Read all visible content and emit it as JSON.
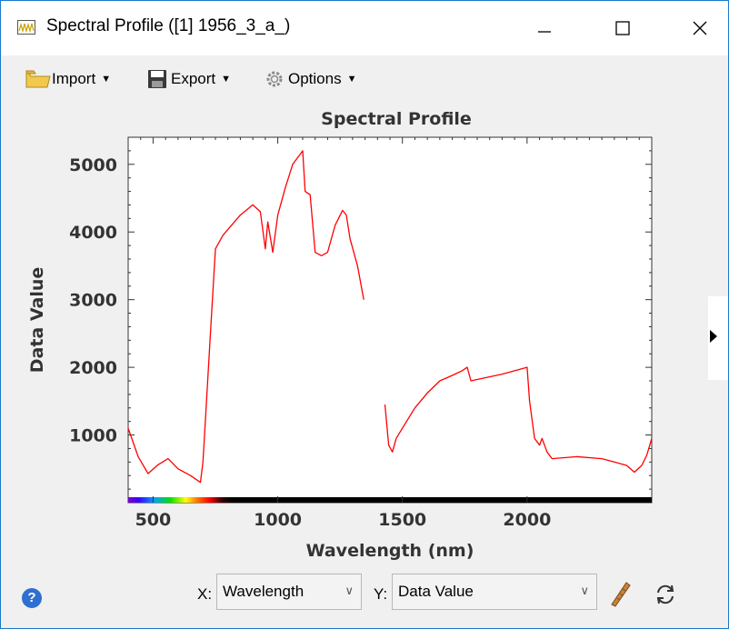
{
  "window": {
    "title": "Spectral Profile ([1] 1956_3_a_)",
    "controls": [
      "minimize",
      "maximize",
      "close"
    ]
  },
  "toolbar": {
    "import_label": "Import",
    "export_label": "Export",
    "options_label": "Options"
  },
  "footer": {
    "x_label": "X:",
    "x_value": "Wavelength",
    "y_label": "Y:",
    "y_value": "Data Value"
  },
  "colors": {
    "series": "#ff0000",
    "window_border": "#1979ca",
    "help": "#2f6fd2"
  },
  "chart_data": {
    "type": "line",
    "title": "Spectral Profile",
    "xlabel": "Wavelength (nm)",
    "ylabel": "Data Value",
    "xlim": [
      400,
      2500
    ],
    "ylim": [
      0,
      5400
    ],
    "xticks": [
      500,
      1000,
      1500,
      2000
    ],
    "yticks": [
      1000,
      2000,
      3000,
      4000,
      5000
    ],
    "grid": false,
    "color_bar_under_x_axis": "visible spectrum (violet-red) then black",
    "series": [
      {
        "color": "#ff0000",
        "x": [
          400,
          440,
          480,
          520,
          560,
          600,
          650,
          690,
          700,
          730,
          750,
          780,
          850,
          900,
          930,
          950,
          960,
          980,
          1000,
          1030,
          1060,
          1090,
          1100,
          1110,
          1130,
          1150,
          1175,
          1200,
          1230,
          1260,
          1275,
          1290,
          1320,
          1345
        ],
        "y": [
          1100,
          680,
          430,
          560,
          650,
          500,
          400,
          300,
          600,
          2500,
          3750,
          3950,
          4250,
          4400,
          4300,
          3750,
          4150,
          3700,
          4250,
          4650,
          5000,
          5150,
          5200,
          4600,
          4550,
          3700,
          3650,
          3700,
          4100,
          4320,
          4250,
          3900,
          3500,
          3000
        ]
      },
      {
        "color": "#ff0000",
        "x": [
          1430,
          1445,
          1460,
          1475,
          1500,
          1550,
          1600,
          1650,
          1700,
          1740,
          1760,
          1775,
          1800,
          1900,
          2000,
          2010,
          2030,
          2050,
          2060,
          2080,
          2100,
          2200,
          2300,
          2350,
          2400,
          2430,
          2460,
          2480,
          2500
        ],
        "y": [
          1450,
          850,
          750,
          950,
          1100,
          1400,
          1620,
          1800,
          1880,
          1950,
          2000,
          1800,
          1820,
          1900,
          2000,
          1500,
          950,
          850,
          950,
          750,
          650,
          680,
          650,
          600,
          550,
          450,
          550,
          700,
          950
        ]
      }
    ]
  }
}
